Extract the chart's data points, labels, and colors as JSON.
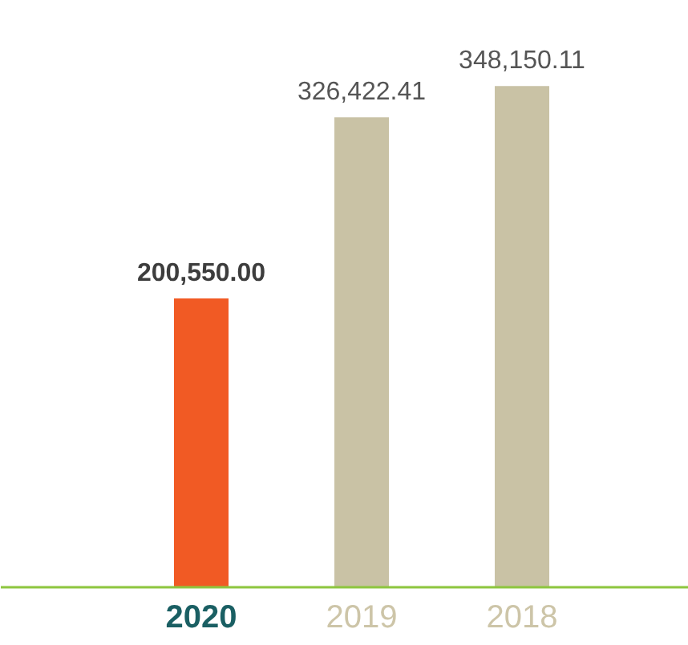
{
  "chart_data": {
    "type": "bar",
    "categories": [
      "2020",
      "2019",
      "2018"
    ],
    "values": [
      200550.0,
      326422.41,
      348150.11
    ],
    "colors": [
      "#f15a24",
      "#c9c2a5",
      "#c9c2a5"
    ],
    "value_labels": [
      "200,550.00",
      "326,422.41",
      "348,150.11"
    ]
  }
}
